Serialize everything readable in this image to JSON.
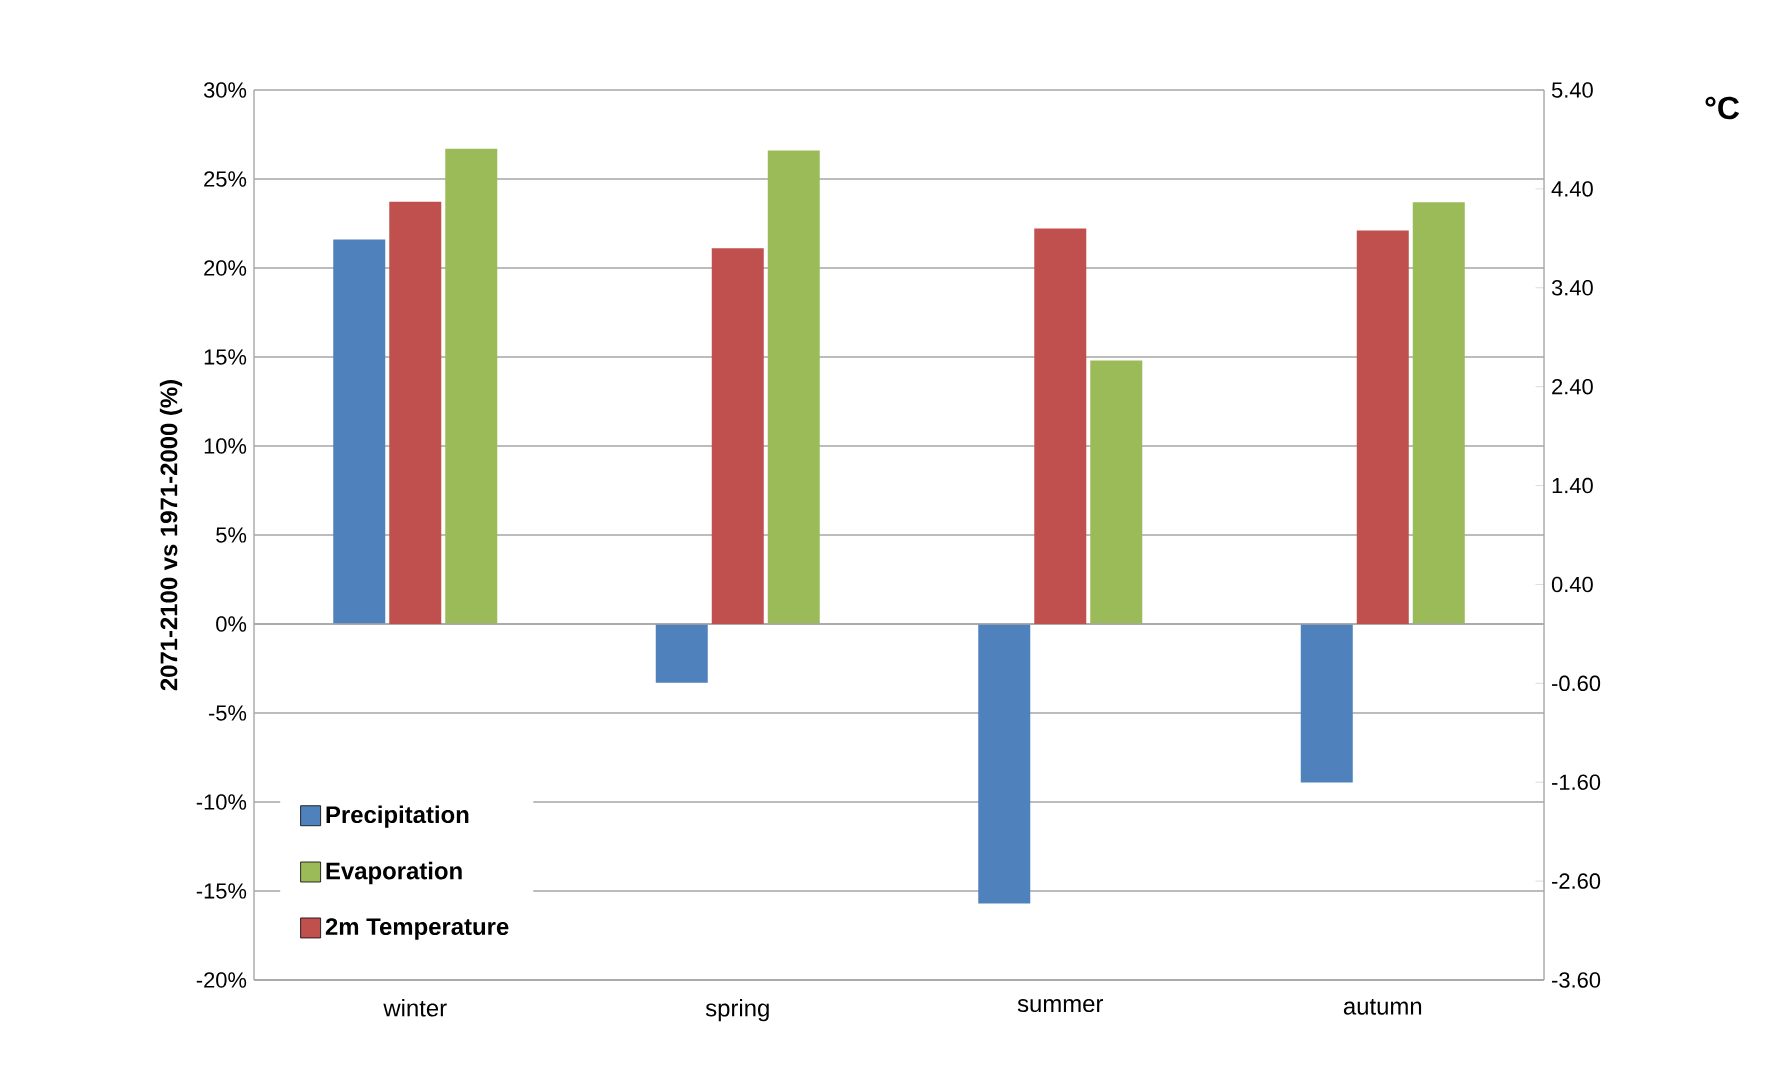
{
  "chart_data": {
    "type": "bar",
    "categories": [
      "winter",
      "spring",
      "summer",
      "autumn"
    ],
    "series": [
      {
        "name": "Precipitation",
        "color": "#4f81bd",
        "values": [
          21.6,
          -3.3,
          -15.7,
          -8.9
        ]
      },
      {
        "name": "2m Temperature",
        "color": "#c0504d",
        "values": [
          4.27,
          3.8,
          4.0,
          3.98
        ],
        "axis": "y2"
      },
      {
        "name": "Evaporation",
        "color": "#9bbb59",
        "values": [
          26.7,
          26.6,
          14.8,
          23.7
        ]
      }
    ],
    "ylabel": "2071-2100 vs 1971-2000 (%)",
    "y2label": "°C",
    "ylim": [
      -20,
      30
    ],
    "yticks": [
      {
        "value": -20,
        "label": "-20%"
      },
      {
        "value": -15,
        "label": "-15%"
      },
      {
        "value": -10,
        "label": "-10%"
      },
      {
        "value": -5,
        "label": "-5%"
      },
      {
        "value": 0,
        "label": "0%"
      },
      {
        "value": 5,
        "label": "5%"
      },
      {
        "value": 10,
        "label": "10%"
      },
      {
        "value": 15,
        "label": "15%"
      },
      {
        "value": 20,
        "label": "20%"
      },
      {
        "value": 25,
        "label": "25%"
      },
      {
        "value": 30,
        "label": "30%"
      }
    ],
    "y2lim": [
      -3.6,
      5.4
    ],
    "y2ticks": [
      {
        "value": -3.6,
        "label": "-3.60"
      },
      {
        "value": -2.6,
        "label": "-2.60"
      },
      {
        "value": -1.6,
        "label": "-1.60"
      },
      {
        "value": -0.6,
        "label": "-0.60"
      },
      {
        "value": 0.4,
        "label": "0.40"
      },
      {
        "value": 1.4,
        "label": "1.40"
      },
      {
        "value": 2.4,
        "label": "2.40"
      },
      {
        "value": 3.4,
        "label": "3.40"
      },
      {
        "value": 4.4,
        "label": "4.40"
      },
      {
        "value": 5.4,
        "label": "5.40"
      }
    ],
    "grid": "y",
    "legend": "bottom left"
  }
}
